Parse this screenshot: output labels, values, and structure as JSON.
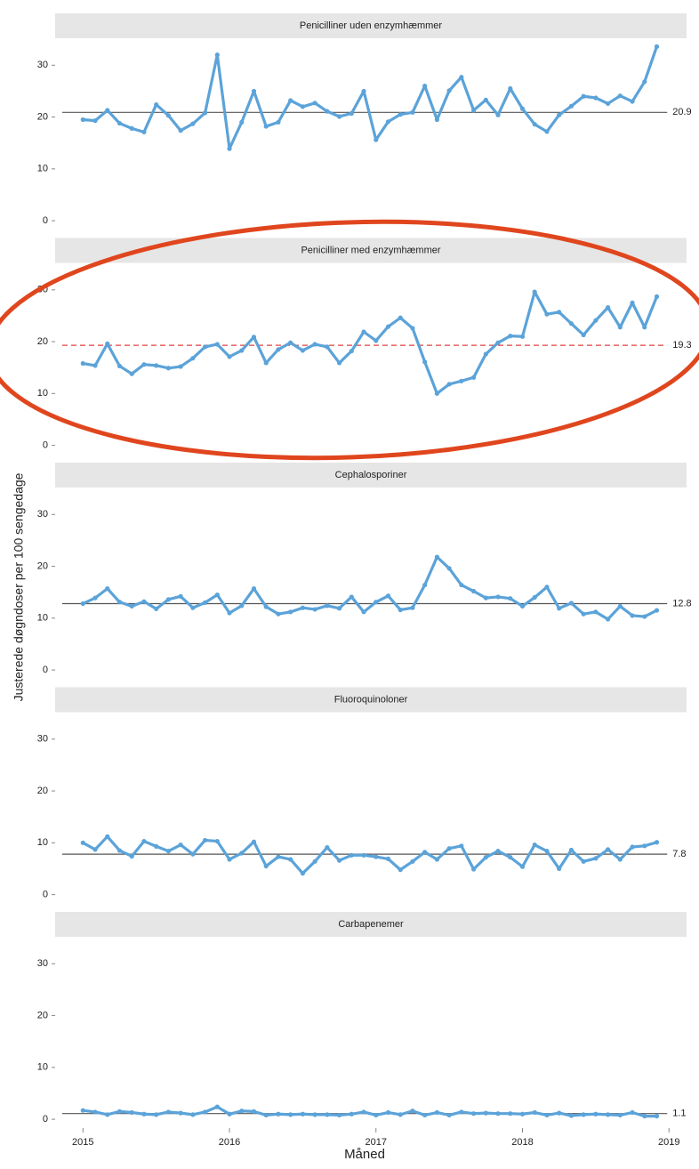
{
  "chart_data": {
    "type": "line",
    "xlabel": "Måned",
    "ylabel": "Justerede døgndoser per 100 sengedage",
    "x": [
      2015,
      2015.0833,
      2015.1667,
      2015.25,
      2015.3333,
      2015.4167,
      2015.5,
      2015.5833,
      2015.6667,
      2015.75,
      2015.8333,
      2015.9167,
      2016,
      2016.0833,
      2016.1667,
      2016.25,
      2016.3333,
      2016.4167,
      2016.5,
      2016.5833,
      2016.6667,
      2016.75,
      2016.8333,
      2016.9167,
      2017,
      2017.0833,
      2017.1667,
      2017.25,
      2017.3333,
      2017.4167,
      2017.5,
      2017.5833,
      2017.6667,
      2017.75,
      2017.8333,
      2017.9167,
      2018,
      2018.0833,
      2018.1667,
      2018.25,
      2018.3333,
      2018.4167,
      2018.5,
      2018.5833,
      2018.6667,
      2018.75,
      2018.8333,
      2018.9167
    ],
    "xlim": [
      2014.81,
      2019.12
    ],
    "xticks": [
      2015,
      2016,
      2017,
      2018,
      2019
    ],
    "ylim": [
      -1.7,
      35.2
    ],
    "yticks": [
      0,
      10,
      20,
      30
    ],
    "color": "#5ba3d9",
    "panels": [
      {
        "title": "Penicilliner uden enzymhæmmer",
        "reference": {
          "value": 20.9,
          "color": "#555555",
          "dashed": false
        },
        "values": [
          19.5,
          19.3,
          21.3,
          18.8,
          17.8,
          17.1,
          22.4,
          20.3,
          17.4,
          18.7,
          20.8,
          32.0,
          13.9,
          19.0,
          25.0,
          18.2,
          19.0,
          23.2,
          22.0,
          22.7,
          21.1,
          20.1,
          20.7,
          25.0,
          15.6,
          19.1,
          20.5,
          20.9,
          26.0,
          19.5,
          25.1,
          27.7,
          21.3,
          23.3,
          20.4,
          25.5,
          21.6,
          18.6,
          17.2,
          20.4,
          22.1,
          24.0,
          23.7,
          22.6,
          24.1,
          23.0,
          26.8,
          33.6
        ]
      },
      {
        "title": "Penicilliner med enzymhæmmer",
        "reference": {
          "value": 19.3,
          "color": "#e04040",
          "dashed": true
        },
        "values": [
          15.8,
          15.4,
          19.6,
          15.3,
          13.8,
          15.6,
          15.4,
          14.9,
          15.2,
          16.8,
          19.0,
          19.5,
          17.1,
          18.3,
          20.9,
          15.9,
          18.5,
          19.8,
          18.3,
          19.5,
          19.0,
          15.9,
          18.2,
          21.9,
          20.2,
          22.9,
          24.6,
          22.6,
          16.1,
          10.0,
          11.8,
          12.4,
          13.1,
          17.6,
          19.8,
          21.1,
          21.0,
          29.6,
          25.3,
          25.7,
          23.5,
          21.3,
          24.1,
          26.6,
          22.8,
          27.5,
          22.8,
          28.7
        ]
      },
      {
        "title": "Cephalosporiner",
        "reference": {
          "value": 12.8,
          "color": "#555555",
          "dashed": false
        },
        "values": [
          12.8,
          13.9,
          15.7,
          13.1,
          12.3,
          13.2,
          11.8,
          13.6,
          14.2,
          12.0,
          13.0,
          14.5,
          11.0,
          12.4,
          15.7,
          12.2,
          10.8,
          11.2,
          12.0,
          11.7,
          12.4,
          11.9,
          14.1,
          11.2,
          13.1,
          14.3,
          11.6,
          12.0,
          16.4,
          21.8,
          19.6,
          16.4,
          15.2,
          13.9,
          14.1,
          13.8,
          12.3,
          14.0,
          16.0,
          11.9,
          12.9,
          10.8,
          11.2,
          9.8,
          12.3,
          10.5,
          10.3,
          11.5
        ]
      },
      {
        "title": "Fluoroquinoloner",
        "reference": {
          "value": 7.8,
          "color": "#555555",
          "dashed": false
        },
        "values": [
          10.0,
          8.7,
          11.2,
          8.5,
          7.4,
          10.3,
          9.3,
          8.4,
          9.6,
          7.8,
          10.5,
          10.3,
          6.8,
          8.0,
          10.2,
          5.5,
          7.3,
          6.8,
          4.1,
          6.4,
          9.1,
          6.6,
          7.6,
          7.6,
          7.3,
          6.9,
          4.8,
          6.4,
          8.2,
          6.8,
          8.9,
          9.4,
          4.9,
          7.2,
          8.4,
          7.2,
          5.4,
          9.6,
          8.4,
          5.0,
          8.6,
          6.4,
          7.0,
          8.7,
          6.8,
          9.2,
          9.4,
          10.1
        ]
      },
      {
        "title": "Carbapenemer",
        "reference": {
          "value": 1.1,
          "color": "#555555",
          "dashed": false
        },
        "values": [
          1.7,
          1.4,
          0.9,
          1.5,
          1.3,
          1.0,
          0.9,
          1.4,
          1.2,
          0.9,
          1.4,
          2.4,
          1.0,
          1.6,
          1.5,
          0.8,
          1.0,
          0.9,
          1.0,
          0.9,
          0.9,
          0.8,
          1.0,
          1.4,
          0.8,
          1.3,
          0.9,
          1.6,
          0.8,
          1.3,
          0.8,
          1.4,
          1.1,
          1.2,
          1.1,
          1.1,
          1.0,
          1.3,
          0.8,
          1.2,
          0.7,
          0.9,
          1.0,
          0.9,
          0.8,
          1.3,
          0.6,
          0.6
        ]
      }
    ]
  }
}
